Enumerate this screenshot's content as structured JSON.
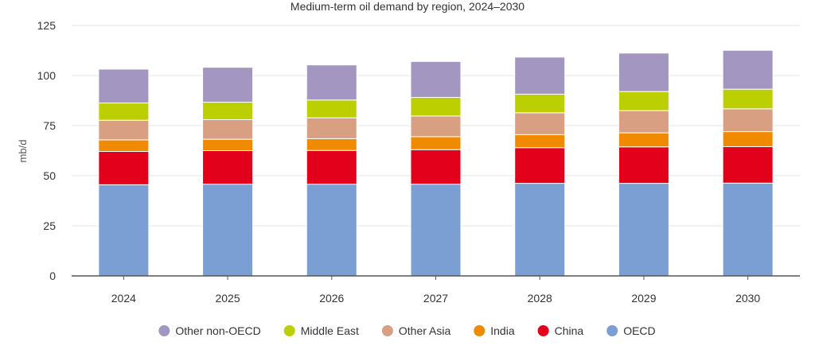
{
  "chart_data": {
    "type": "bar",
    "stacked": true,
    "title": "Medium-term oil demand by region, 2024–2030",
    "xlabel": "",
    "ylabel": "mb/d",
    "ylim": [
      0,
      125
    ],
    "yticks": [
      "0",
      "25",
      "50",
      "75",
      "100",
      "125"
    ],
    "grid": true,
    "legend_position": "bottom",
    "categories": [
      "2024",
      "2025",
      "2026",
      "2027",
      "2028",
      "2029",
      "2030"
    ],
    "series": [
      {
        "name": "OECD",
        "color": "#7b9fd3",
        "values": [
          45.5,
          45.8,
          45.8,
          45.8,
          46.2,
          46.2,
          46.3
        ]
      },
      {
        "name": "China",
        "color": "#e3001b",
        "values": [
          16.6,
          16.7,
          16.8,
          17.2,
          17.8,
          18.2,
          18.2
        ]
      },
      {
        "name": "India",
        "color": "#f08a00",
        "values": [
          5.8,
          5.7,
          5.9,
          6.5,
          6.5,
          7.0,
          7.5
        ]
      },
      {
        "name": "Other Asia",
        "color": "#d89f83",
        "values": [
          9.8,
          9.8,
          10.4,
          10.3,
          10.9,
          11.1,
          11.4
        ]
      },
      {
        "name": "Middle East",
        "color": "#bccf00",
        "values": [
          8.6,
          8.7,
          8.9,
          9.3,
          9.3,
          9.5,
          9.8
        ]
      },
      {
        "name": "Other non-OECD",
        "color": "#a397c2",
        "values": [
          16.9,
          17.4,
          17.5,
          17.9,
          18.5,
          19.2,
          19.4
        ]
      }
    ],
    "legend_order": [
      "Other non-OECD",
      "Middle East",
      "Other Asia",
      "India",
      "China",
      "OECD"
    ]
  }
}
